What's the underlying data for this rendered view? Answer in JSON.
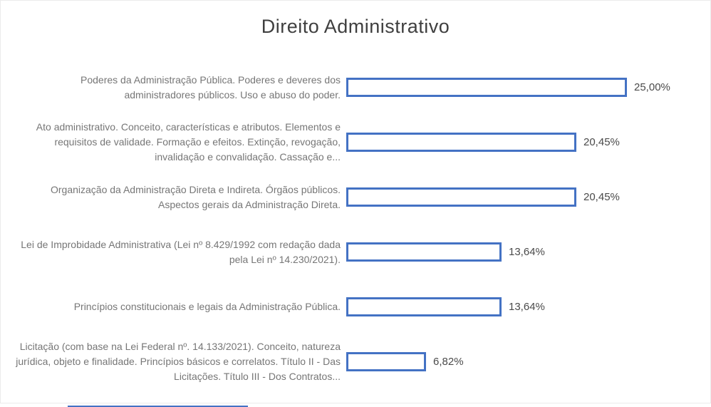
{
  "chart_data": {
    "type": "bar",
    "orientation": "horizontal",
    "title": "Direito Administrativo",
    "categories": [
      "Poderes da Administração Pública.  Poderes e deveres dos administradores públicos.  Uso e abuso do poder.",
      "Ato administrativo.  Conceito, características e atributos. Elementos e requisitos de validade.  Formação e efeitos. Extinção, revogação, invalidação e convalidação.  Cassação e...",
      "Organização da Administração Direta e Indireta.  Órgãos públicos.  Aspectos gerais da Administração Direta.",
      "Lei de Improbidade Administrativa (Lei nº 8.429/1992 com redação dada pela Lei nº 14.230/2021).",
      "Princípios constitucionais e legais da Administração Pública.",
      "Licitação (com base na Lei Federal nº. 14.133/2021). Conceito, natureza jurídica, objeto e finalidade. Princípios básicos e correlatos.  Título II - Das Licitações. Título III - Dos Contratos..."
    ],
    "values": [
      25.0,
      20.45,
      20.45,
      13.64,
      13.64,
      6.82
    ],
    "value_labels": [
      "25,00%",
      "20,45%",
      "20,45%",
      "13,64%",
      "13,64%",
      "6,82%"
    ],
    "xlim": [
      0,
      25
    ],
    "grid": false,
    "legend": "none",
    "bar_fill": "#FFFFFF",
    "bar_border": "#4472C4"
  },
  "colors": {
    "accent": "#4472C4",
    "title_text": "#3F3F3F",
    "category_text": "#767676",
    "value_text": "#4A4A4A",
    "frame_border": "#EBEBEB",
    "bar_fill": "#FFFFFF"
  }
}
